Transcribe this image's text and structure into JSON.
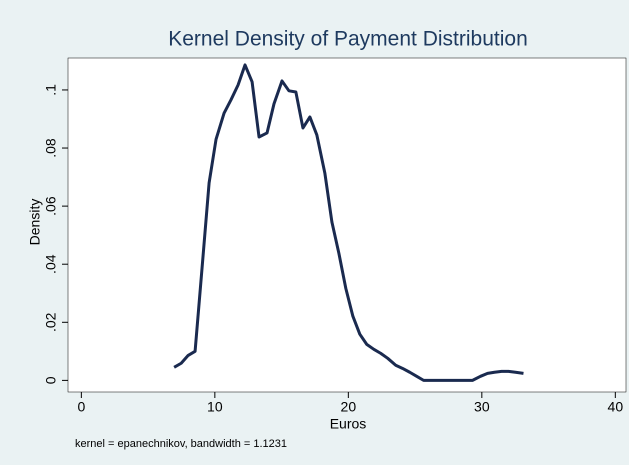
{
  "chart_data": {
    "type": "line",
    "title": "Kernel Density of Payment Distribution",
    "xlabel": "Euros",
    "ylabel": "Density",
    "note": "kernel = epanechnikov, bandwidth = 1.1231",
    "x": [
      6.95,
      7.48,
      8.0,
      8.52,
      9.12,
      9.57,
      10.09,
      10.69,
      11.21,
      11.74,
      12.26,
      12.79,
      13.31,
      13.91,
      14.43,
      15.03,
      15.55,
      16.07,
      16.6,
      17.12,
      17.64,
      18.24,
      18.77,
      19.29,
      19.81,
      20.34,
      20.86,
      21.38,
      21.91,
      22.43,
      22.95,
      23.55,
      24.07,
      24.6,
      25.12,
      25.64,
      26.16,
      26.69,
      27.21,
      27.73,
      28.25,
      28.78,
      29.3,
      29.9,
      30.43,
      30.95,
      31.48,
      32.0,
      32.52,
      33.12
    ],
    "series": [
      {
        "name": "Density",
        "color": "#1a2a4f",
        "values": [
          0.0045,
          0.0059,
          0.0086,
          0.01,
          0.043,
          0.068,
          0.083,
          0.092,
          0.0966,
          0.1017,
          0.1086,
          0.1028,
          0.0838,
          0.0852,
          0.0952,
          0.1031,
          0.0997,
          0.0993,
          0.0869,
          0.0907,
          0.0845,
          0.0714,
          0.0545,
          0.0438,
          0.0317,
          0.0221,
          0.0159,
          0.0124,
          0.0107,
          0.0093,
          0.0076,
          0.0052,
          0.0041,
          0.0028,
          0.0014,
          0,
          0,
          0,
          0,
          0,
          0,
          0,
          0,
          0.0014,
          0.0024,
          0.0028,
          0.0031,
          0.0031,
          0.0028,
          0.0024
        ]
      }
    ],
    "xlim": [
      -1,
      40.8
    ],
    "ylim": [
      -0.004,
      0.111
    ],
    "xticks": [
      0,
      10,
      20,
      30,
      40
    ],
    "yticks": [
      0,
      {
        "value": 0.02,
        "label": ".02"
      },
      {
        "value": 0.04,
        "label": ".04"
      },
      {
        "value": 0.06,
        "label": ".06"
      },
      {
        "value": 0.08,
        "label": ".08"
      },
      {
        "value": 0.1,
        "label": ".1"
      }
    ],
    "grid": false
  }
}
